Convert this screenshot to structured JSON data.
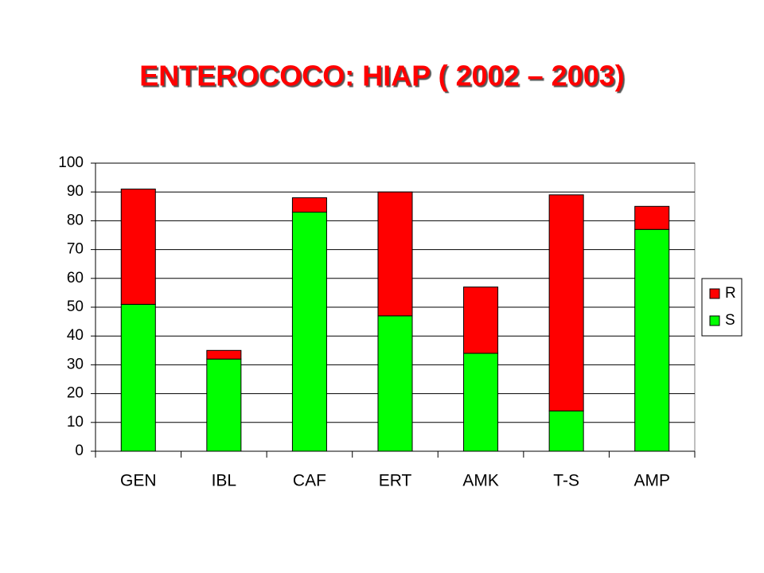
{
  "chart_data": {
    "type": "stacked_bar",
    "title": "ENTEROCOCO: HIAP ( 2002 – 2003)",
    "categories": [
      "GEN",
      "IBL",
      "CAF",
      "ERT",
      "AMK",
      "T-S",
      "AMP"
    ],
    "series": [
      {
        "name": "S",
        "color": "#00ff00",
        "values": [
          51,
          32,
          83,
          47,
          34,
          14,
          77
        ]
      },
      {
        "name": "R",
        "color": "#ff0000",
        "values": [
          40,
          3,
          5,
          43,
          23,
          75,
          8
        ]
      }
    ],
    "ylim": [
      0,
      100
    ],
    "yticks": [
      0,
      10,
      20,
      30,
      40,
      50,
      60,
      70,
      80,
      90,
      100
    ],
    "grid": true,
    "legend": "right"
  }
}
